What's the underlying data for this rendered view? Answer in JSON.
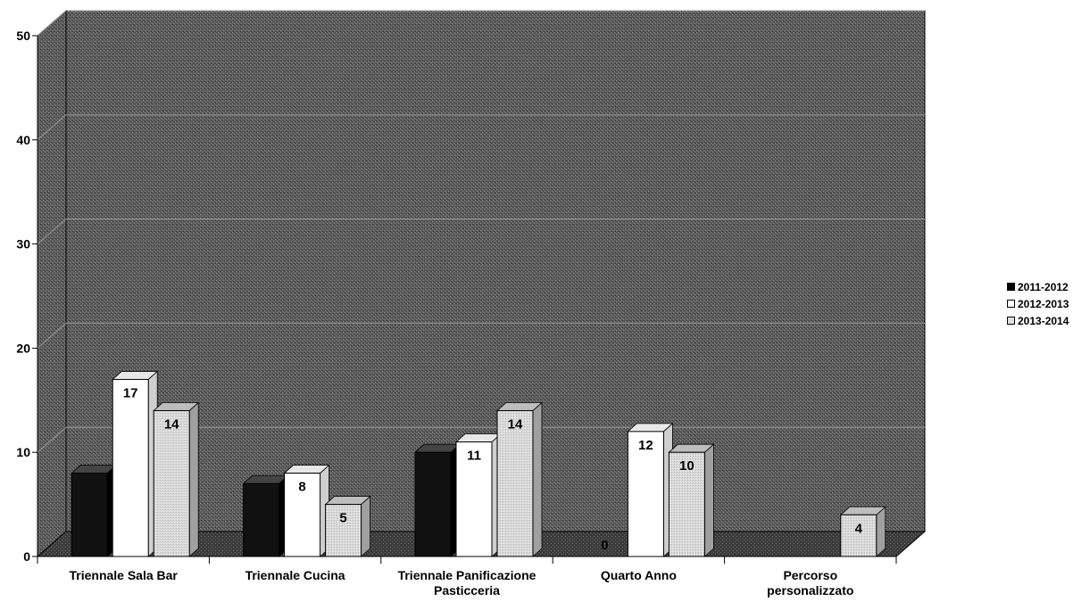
{
  "chart_data": {
    "type": "bar",
    "title": "",
    "xlabel": "",
    "ylabel": "",
    "ylim": [
      0,
      50
    ],
    "yticks": [
      0,
      10,
      20,
      30,
      40,
      50
    ],
    "grid": true,
    "legend_position": "right",
    "categories": [
      [
        "Triennale Sala Bar"
      ],
      [
        "Triennale Cucina"
      ],
      [
        "Triennale Panificazione",
        "Pasticceria"
      ],
      [
        "Quarto Anno"
      ],
      [
        "Percorso",
        "personalizzato"
      ]
    ],
    "series": [
      {
        "name": "2011-2012",
        "color": "#000000",
        "values": [
          8,
          7,
          10,
          0,
          0
        ],
        "labels": [
          "",
          "",
          "",
          "0",
          ""
        ]
      },
      {
        "name": "2012-2013",
        "color": "#ffffff",
        "values": [
          17,
          8,
          11,
          12,
          0
        ],
        "labels": [
          "17",
          "8",
          "11",
          "12",
          ""
        ]
      },
      {
        "name": "2013-2014",
        "color": "#e0e0e0",
        "values": [
          14,
          5,
          14,
          10,
          4
        ],
        "labels": [
          "14",
          "5",
          "14",
          "10",
          "4"
        ]
      }
    ]
  }
}
